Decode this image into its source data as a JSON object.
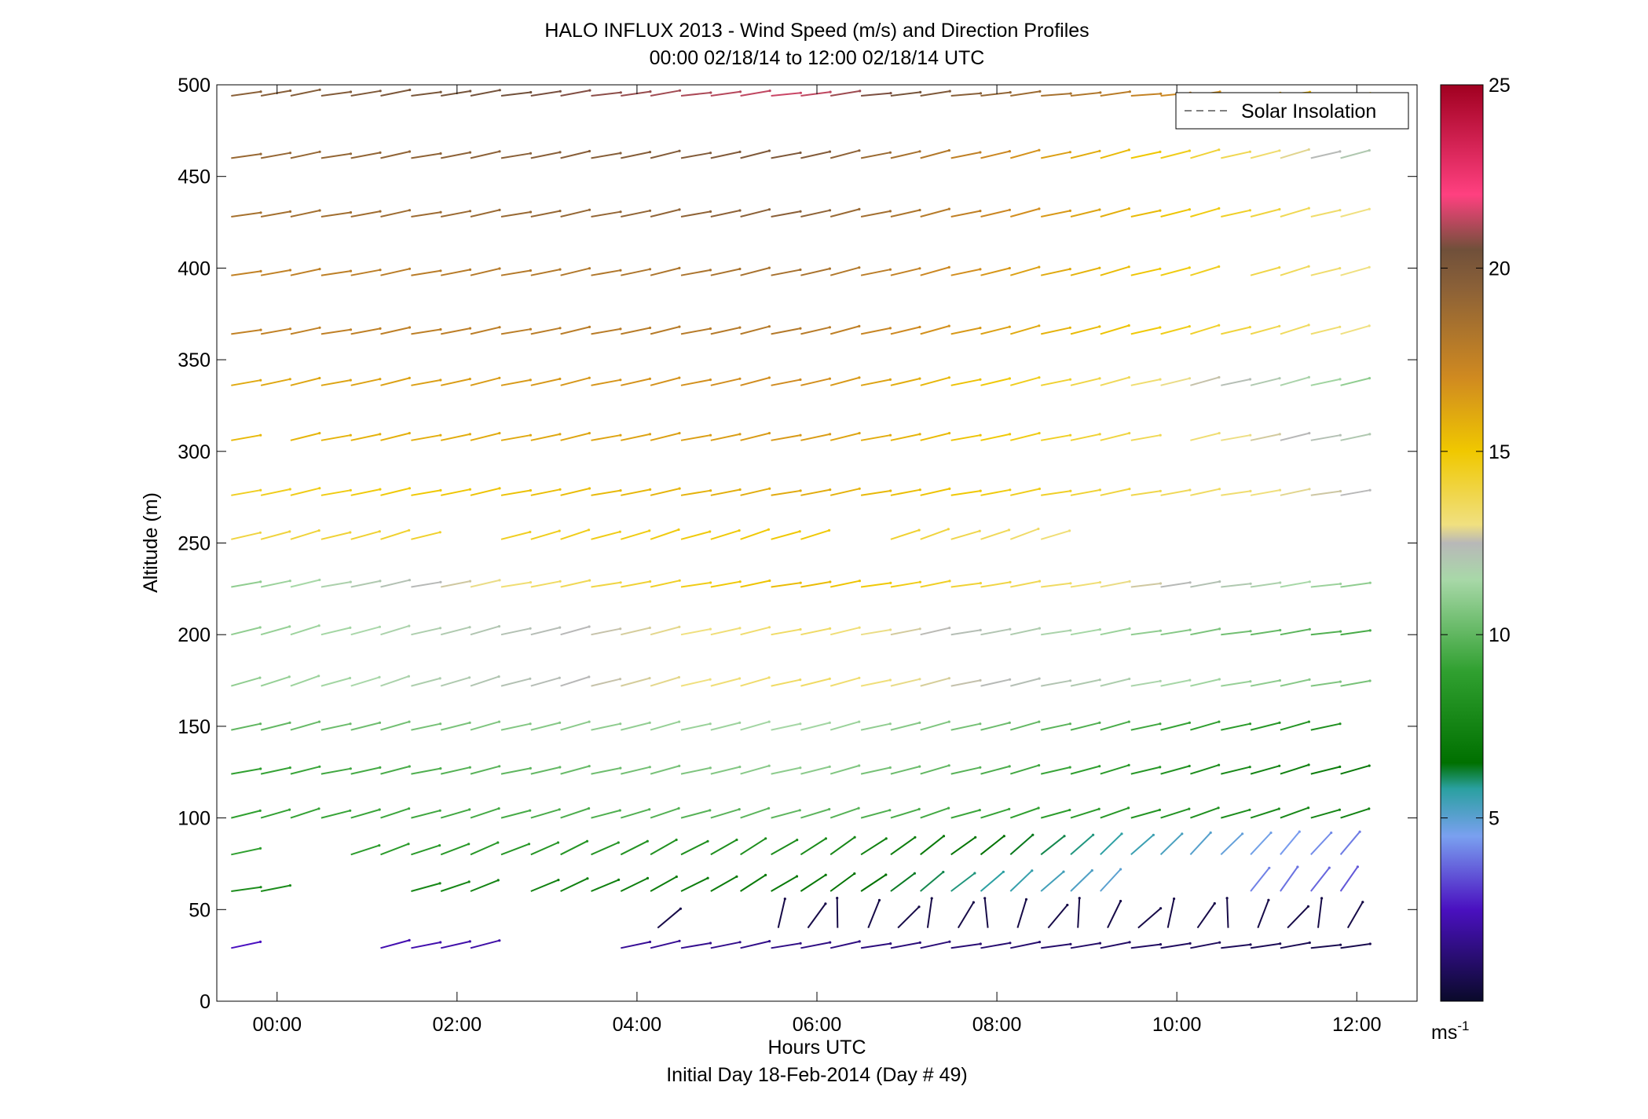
{
  "chart_data": {
    "type": "quiver",
    "title": "HALO INFLUX 2013 - Wind Speed (m/s) and Direction Profiles",
    "subtitle": "00:00 02/18/14 to 12:00 02/18/14  UTC",
    "xlabel": "Hours UTC",
    "xlabel2": "Initial Day 18-Feb-2014 (Day # 49)",
    "ylabel": "Altitude (m)",
    "xlim": [
      -0.67,
      12.67
    ],
    "ylim": [
      0,
      500
    ],
    "x_ticks": [
      0,
      2,
      4,
      6,
      8,
      10,
      12
    ],
    "x_tick_labels": [
      "00:00",
      "02:00",
      "04:00",
      "06:00",
      "08:00",
      "10:00",
      "12:00"
    ],
    "y_ticks": [
      0,
      50,
      100,
      150,
      200,
      250,
      300,
      350,
      400,
      450,
      500
    ],
    "y_tick_labels": [
      "0",
      "50",
      "100",
      "150",
      "200",
      "250",
      "300",
      "350",
      "400",
      "450",
      "500"
    ],
    "legend": {
      "entries": [
        "Solar Insolation"
      ],
      "placement": "top-right",
      "line_color": "#808080",
      "line_style": "dashed"
    },
    "colorbar": {
      "label": "ms-1",
      "label_base": "ms",
      "label_sup": "-1",
      "range": [
        0,
        25
      ],
      "ticks": [
        5,
        10,
        15,
        20,
        25
      ],
      "tick_labels": [
        "5",
        "10",
        "15",
        "20",
        "25"
      ],
      "stops": [
        {
          "value": 0,
          "color": "#0a0a2a"
        },
        {
          "value": 2.5,
          "color": "#4a10c0"
        },
        {
          "value": 4.5,
          "color": "#7aa0f0"
        },
        {
          "value": 5.8,
          "color": "#2aa0a0"
        },
        {
          "value": 6.5,
          "color": "#007000"
        },
        {
          "value": 9,
          "color": "#30a030"
        },
        {
          "value": 11.5,
          "color": "#a8d8a8"
        },
        {
          "value": 12.5,
          "color": "#b8b8b8"
        },
        {
          "value": 13,
          "color": "#f0e080"
        },
        {
          "value": 15,
          "color": "#f0c800"
        },
        {
          "value": 17,
          "color": "#d08a20"
        },
        {
          "value": 19.5,
          "color": "#8a6038"
        },
        {
          "value": 20.5,
          "color": "#70503a"
        },
        {
          "value": 22,
          "color": "#ff4080"
        },
        {
          "value": 25,
          "color": "#a00020"
        }
      ]
    },
    "heights": [
      29,
      60,
      80,
      100,
      124,
      148,
      172,
      200,
      226,
      252,
      276,
      306,
      336,
      364,
      396,
      428,
      460,
      494
    ],
    "profile_times": [
      -0.33,
      0,
      0.33,
      0.67,
      1,
      1.33,
      1.67,
      2,
      2.33,
      2.67,
      3,
      3.33,
      3.67,
      4,
      4.33,
      4.67,
      5,
      5.33,
      5.67,
      6,
      6.33,
      6.67,
      7,
      7.33,
      7.67,
      8,
      8.33,
      8.67,
      9,
      9.33,
      9.67,
      10,
      10.33,
      10.67,
      11,
      11.33,
      11.67,
      12
    ],
    "series": [
      {
        "height": 494,
        "missing": [],
        "speed_start": 19.5,
        "speed_mid": 21.5,
        "speed_end": 15,
        "dir_start": 10,
        "dir_end": 5
      },
      {
        "height": 460,
        "missing": [],
        "speed_start": 19,
        "speed_mid": 20,
        "speed_end": 12,
        "dir_start": 10,
        "dir_end": 15
      },
      {
        "height": 428,
        "missing": [],
        "speed_start": 18.5,
        "speed_mid": 19.5,
        "speed_end": 13,
        "dir_start": 10,
        "dir_end": 15
      },
      {
        "height": 396,
        "missing": [
          33
        ],
        "speed_start": 17.5,
        "speed_mid": 18.5,
        "speed_end": 13,
        "dir_start": 10,
        "dir_end": 16
      },
      {
        "height": 364,
        "missing": [],
        "speed_start": 17.5,
        "speed_mid": 18,
        "speed_end": 13,
        "dir_start": 10,
        "dir_end": 16
      },
      {
        "height": 336,
        "missing": [],
        "speed_start": 16,
        "speed_mid": 17,
        "speed_end": 11,
        "dir_start": 12,
        "dir_end": 14
      },
      {
        "height": 306,
        "missing": [
          1,
          31
        ],
        "speed_start": 15.5,
        "speed_mid": 16.5,
        "speed_end": 12,
        "dir_start": 12,
        "dir_end": 12
      },
      {
        "height": 276,
        "missing": [],
        "speed_start": 14.5,
        "speed_mid": 16,
        "speed_end": 12.5,
        "dir_start": 12,
        "dir_end": 10
      },
      {
        "height": 252,
        "missing": [
          7,
          8,
          20,
          21,
          28,
          29,
          30,
          31,
          32,
          33,
          34,
          35,
          36,
          37
        ],
        "speed_start": 14,
        "speed_mid": 15,
        "speed_end": 11,
        "dir_start": 15,
        "dir_end": 20
      },
      {
        "height": 226,
        "missing": [],
        "speed_start": 11,
        "speed_mid": 15.5,
        "speed_end": 11,
        "dir_start": 12,
        "dir_end": 8
      },
      {
        "height": 200,
        "missing": [],
        "speed_start": 11,
        "speed_mid": 13.5,
        "speed_end": 9.5,
        "dir_start": 16,
        "dir_end": 8
      },
      {
        "height": 172,
        "missing": [],
        "speed_start": 11,
        "speed_mid": 13.5,
        "speed_end": 10.5,
        "dir_start": 18,
        "dir_end": 10
      },
      {
        "height": 148,
        "missing": [
          37
        ],
        "speed_start": 10,
        "speed_mid": 11.5,
        "speed_end": 8,
        "dir_start": 14,
        "dir_end": 14
      },
      {
        "height": 124,
        "missing": [],
        "speed_start": 9,
        "speed_mid": 11,
        "speed_end": 7,
        "dir_start": 12,
        "dir_end": 16
      },
      {
        "height": 100,
        "missing": [],
        "speed_start": 9,
        "speed_mid": 10,
        "speed_end": 7.5,
        "dir_start": 16,
        "dir_end": 18
      },
      {
        "height": 80,
        "missing": [
          1,
          2,
          3
        ],
        "speed_start": 9,
        "speed_mid": 8,
        "speed_end": 4,
        "dir_start": 14,
        "dir_end": 50
      },
      {
        "height": 60,
        "missing": [
          2,
          3,
          4,
          5,
          9,
          30,
          31,
          32,
          33
        ],
        "speed_start": 8,
        "speed_mid": 7,
        "speed_end": 3.5,
        "dir_start": 10,
        "dir_end": 55
      },
      {
        "height": 29,
        "missing": [
          1,
          2,
          3,
          4,
          9,
          10,
          11,
          12
        ],
        "speed_start": 2.5,
        "speed_mid": 1.5,
        "speed_end": 0.6,
        "dir_start": 14,
        "dir_end": 8
      }
    ],
    "extra_low_vectors": {
      "height": 40,
      "times": [
        4.33,
        5.67,
        6,
        6.33,
        6.67,
        7,
        7.33,
        7.67,
        8,
        8.33,
        8.67,
        9,
        9.33,
        9.67,
        10,
        10.33,
        10.67,
        11,
        11.33,
        11.67,
        12
      ],
      "speed": 0.5
    }
  }
}
